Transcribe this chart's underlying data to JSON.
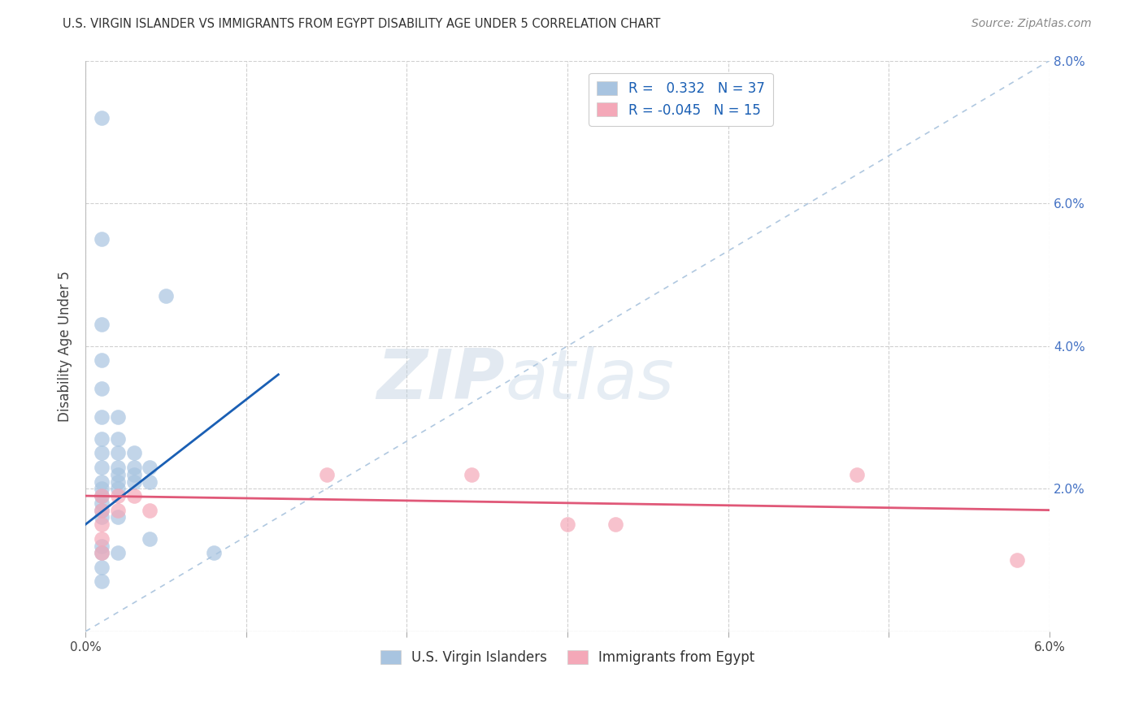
{
  "title": "U.S. VIRGIN ISLANDER VS IMMIGRANTS FROM EGYPT DISABILITY AGE UNDER 5 CORRELATION CHART",
  "source": "Source: ZipAtlas.com",
  "ylabel": "Disability Age Under 5",
  "xlim": [
    0.0,
    0.06
  ],
  "ylim": [
    0.0,
    0.08
  ],
  "legend1_label": "U.S. Virgin Islanders",
  "legend2_label": "Immigrants from Egypt",
  "r1": 0.332,
  "n1": 37,
  "r2": -0.045,
  "n2": 15,
  "blue_color": "#a8c4e0",
  "pink_color": "#f4a8b8",
  "line_blue": "#1a5fb4",
  "line_pink": "#e05878",
  "diag_color": "#b0c8e0",
  "scatter_blue": [
    [
      0.001,
      0.072
    ],
    [
      0.001,
      0.055
    ],
    [
      0.001,
      0.043
    ],
    [
      0.001,
      0.038
    ],
    [
      0.001,
      0.034
    ],
    [
      0.001,
      0.03
    ],
    [
      0.001,
      0.027
    ],
    [
      0.001,
      0.025
    ],
    [
      0.001,
      0.023
    ],
    [
      0.001,
      0.021
    ],
    [
      0.001,
      0.02
    ],
    [
      0.001,
      0.019
    ],
    [
      0.001,
      0.018
    ],
    [
      0.001,
      0.017
    ],
    [
      0.001,
      0.016
    ],
    [
      0.001,
      0.012
    ],
    [
      0.001,
      0.011
    ],
    [
      0.001,
      0.009
    ],
    [
      0.001,
      0.007
    ],
    [
      0.002,
      0.03
    ],
    [
      0.002,
      0.027
    ],
    [
      0.002,
      0.025
    ],
    [
      0.002,
      0.023
    ],
    [
      0.002,
      0.022
    ],
    [
      0.002,
      0.021
    ],
    [
      0.002,
      0.02
    ],
    [
      0.002,
      0.016
    ],
    [
      0.002,
      0.011
    ],
    [
      0.003,
      0.025
    ],
    [
      0.003,
      0.023
    ],
    [
      0.003,
      0.022
    ],
    [
      0.003,
      0.021
    ],
    [
      0.004,
      0.023
    ],
    [
      0.004,
      0.021
    ],
    [
      0.004,
      0.013
    ],
    [
      0.005,
      0.047
    ],
    [
      0.008,
      0.011
    ]
  ],
  "scatter_pink": [
    [
      0.001,
      0.019
    ],
    [
      0.001,
      0.017
    ],
    [
      0.001,
      0.015
    ],
    [
      0.001,
      0.013
    ],
    [
      0.001,
      0.011
    ],
    [
      0.002,
      0.019
    ],
    [
      0.002,
      0.017
    ],
    [
      0.003,
      0.019
    ],
    [
      0.004,
      0.017
    ],
    [
      0.015,
      0.022
    ],
    [
      0.024,
      0.022
    ],
    [
      0.03,
      0.015
    ],
    [
      0.033,
      0.015
    ],
    [
      0.048,
      0.022
    ],
    [
      0.058,
      0.01
    ]
  ],
  "blue_line_x": [
    0.0,
    0.012
  ],
  "blue_line_y": [
    0.015,
    0.036
  ],
  "pink_line_x": [
    0.0,
    0.06
  ],
  "pink_line_y": [
    0.019,
    0.017
  ],
  "watermark_zip": "ZIP",
  "watermark_atlas": "atlas",
  "background_color": "#ffffff",
  "grid_color": "#d0d0d0"
}
